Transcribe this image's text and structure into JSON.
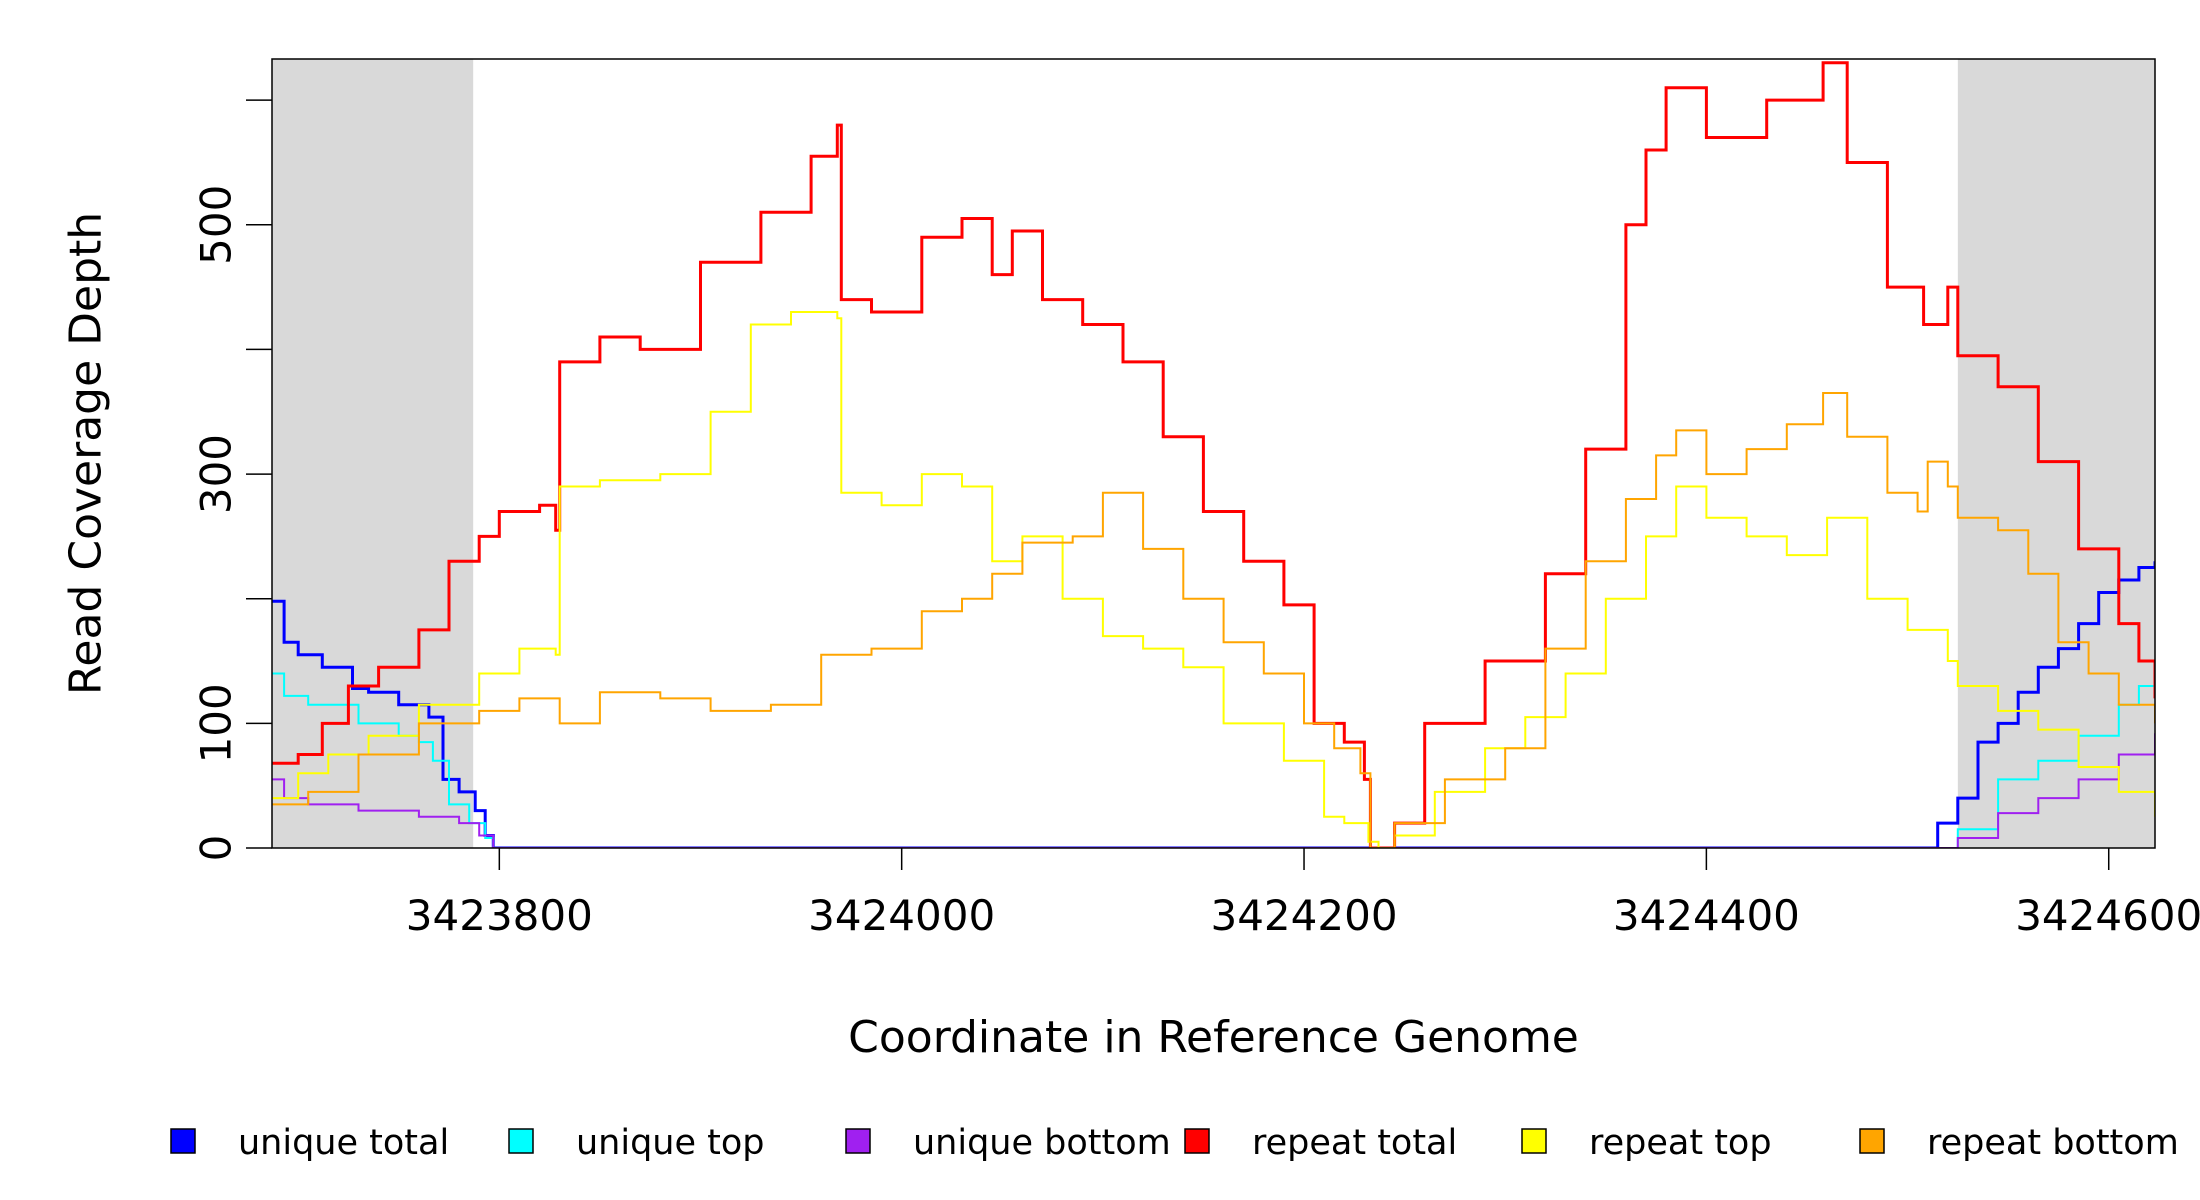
{
  "chart_data": {
    "type": "line",
    "title": "",
    "xlabel": "Coordinate in Reference Genome",
    "ylabel": "Read Coverage Depth",
    "xlim": [
      3423687,
      3424623
    ],
    "ylim": [
      0,
      633
    ],
    "x_ticks": [
      3423800,
      3424000,
      3424200,
      3424400,
      3424600
    ],
    "x_tick_labels": [
      "3423800",
      "3424000",
      "3424200",
      "3424400",
      "3424600"
    ],
    "y_ticks": [
      0,
      100,
      200,
      300,
      400,
      500,
      600
    ],
    "y_tick_labels": [
      "0",
      "100",
      "",
      "300",
      "",
      "500",
      ""
    ],
    "shaded_regions": [
      [
        3423687,
        3423787
      ],
      [
        3424525,
        3424623
      ]
    ],
    "shade_color": "#d9d9d9",
    "grid": false,
    "legend_position": "bottom",
    "series": [
      {
        "name": "unique total",
        "color": "#0000ff",
        "width": 3,
        "x": [
          3423687,
          3423693,
          3423700,
          3423712,
          3423727,
          3423735,
          3423750,
          3423765,
          3423772,
          3423780,
          3423788,
          3423793,
          3423797,
          3423800,
          3424510,
          3424515,
          3424525,
          3424535,
          3424545,
          3424555,
          3424565,
          3424575,
          3424585,
          3424595,
          3424605,
          3424615,
          3424623
        ],
        "y": [
          198,
          165,
          155,
          145,
          128,
          125,
          115,
          105,
          55,
          45,
          30,
          10,
          0,
          0,
          0,
          20,
          40,
          85,
          100,
          125,
          145,
          160,
          180,
          205,
          215,
          225,
          230
        ]
      },
      {
        "name": "unique top",
        "color": "#00ffff",
        "width": 2,
        "x": [
          3423687,
          3423693,
          3423705,
          3423730,
          3423750,
          3423760,
          3423767,
          3423775,
          3423785,
          3423793,
          3423797,
          3423800,
          3424510,
          3424525,
          3424545,
          3424565,
          3424585,
          3424605,
          3424615,
          3424623
        ],
        "y": [
          140,
          122,
          115,
          100,
          90,
          85,
          70,
          35,
          20,
          8,
          0,
          0,
          0,
          15,
          55,
          70,
          90,
          115,
          130,
          135
        ]
      },
      {
        "name": "unique bottom",
        "color": "#a020f0",
        "width": 2,
        "x": [
          3423687,
          3423693,
          3423705,
          3423730,
          3423760,
          3423780,
          3423790,
          3423797,
          3423800,
          3424510,
          3424525,
          3424545,
          3424565,
          3424585,
          3424605,
          3424623
        ],
        "y": [
          55,
          40,
          35,
          30,
          25,
          20,
          10,
          0,
          0,
          0,
          8,
          28,
          40,
          55,
          75,
          92
        ]
      },
      {
        "name": "repeat total",
        "color": "#ff0000",
        "width": 3,
        "x": [
          3423687,
          3423700,
          3423712,
          3423725,
          3423740,
          3423760,
          3423775,
          3423790,
          3423800,
          3423820,
          3423828,
          3423830,
          3423850,
          3423870,
          3423900,
          3423930,
          3423955,
          3423968,
          3423970,
          3423985,
          3424010,
          3424030,
          3424045,
          3424055,
          3424070,
          3424090,
          3424110,
          3424130,
          3424150,
          3424170,
          3424190,
          3424205,
          3424220,
          3424230,
          3424233,
          3424237,
          3424245,
          3424260,
          3424290,
          3424320,
          3424340,
          3424360,
          3424370,
          3424380,
          3424400,
          3424430,
          3424458,
          3424470,
          3424490,
          3424508,
          3424520,
          3424525,
          3424545,
          3424565,
          3424585,
          3424605,
          3424615,
          3424623
        ],
        "y": [
          68,
          75,
          100,
          130,
          145,
          175,
          230,
          250,
          270,
          275,
          255,
          390,
          410,
          400,
          470,
          510,
          555,
          580,
          440,
          430,
          490,
          505,
          460,
          495,
          440,
          420,
          390,
          330,
          270,
          230,
          195,
          100,
          85,
          55,
          0,
          0,
          20,
          100,
          150,
          220,
          320,
          500,
          560,
          610,
          570,
          600,
          630,
          550,
          450,
          420,
          450,
          395,
          370,
          310,
          240,
          180,
          150,
          120
        ]
      },
      {
        "name": "repeat top",
        "color": "#ffff00",
        "width": 2,
        "x": [
          3423687,
          3423700,
          3423715,
          3423735,
          3423760,
          3423790,
          3423810,
          3423828,
          3423830,
          3423850,
          3423880,
          3423905,
          3423925,
          3423945,
          3423968,
          3423970,
          3423990,
          3424010,
          3424030,
          3424045,
          3424060,
          3424080,
          3424100,
          3424120,
          3424140,
          3424160,
          3424190,
          3424210,
          3424220,
          3424232,
          3424237,
          3424245,
          3424265,
          3424290,
          3424310,
          3424330,
          3424350,
          3424370,
          3424385,
          3424400,
          3424420,
          3424440,
          3424460,
          3424480,
          3424500,
          3424520,
          3424525,
          3424545,
          3424565,
          3424585,
          3424605,
          3424623
        ],
        "y": [
          40,
          60,
          75,
          90,
          115,
          140,
          160,
          155,
          290,
          295,
          300,
          350,
          420,
          430,
          425,
          285,
          275,
          300,
          290,
          230,
          250,
          200,
          170,
          160,
          145,
          100,
          70,
          25,
          20,
          5,
          0,
          10,
          45,
          80,
          105,
          140,
          200,
          250,
          290,
          265,
          250,
          235,
          265,
          200,
          175,
          150,
          130,
          110,
          95,
          65,
          45,
          25
        ]
      },
      {
        "name": "repeat bottom",
        "color": "#ffa500",
        "width": 2,
        "x": [
          3423687,
          3423705,
          3423730,
          3423760,
          3423790,
          3423810,
          3423830,
          3423850,
          3423880,
          3423905,
          3423935,
          3423960,
          3423985,
          3424010,
          3424030,
          3424045,
          3424060,
          3424085,
          3424100,
          3424120,
          3424140,
          3424160,
          3424180,
          3424200,
          3424215,
          3424228,
          3424233,
          3424238,
          3424245,
          3424270,
          3424300,
          3424320,
          3424340,
          3424360,
          3424375,
          3424385,
          3424400,
          3424420,
          3424440,
          3424458,
          3424470,
          3424490,
          3424505,
          3424510,
          3424520,
          3424525,
          3424545,
          3424560,
          3424575,
          3424590,
          3424605,
          3424623
        ],
        "y": [
          35,
          45,
          75,
          100,
          110,
          120,
          100,
          125,
          120,
          110,
          115,
          155,
          160,
          190,
          200,
          220,
          245,
          250,
          285,
          240,
          200,
          165,
          140,
          100,
          80,
          60,
          0,
          0,
          20,
          55,
          80,
          160,
          230,
          280,
          315,
          335,
          300,
          320,
          340,
          365,
          330,
          285,
          270,
          310,
          290,
          265,
          255,
          220,
          165,
          140,
          115,
          100
        ]
      }
    ]
  }
}
